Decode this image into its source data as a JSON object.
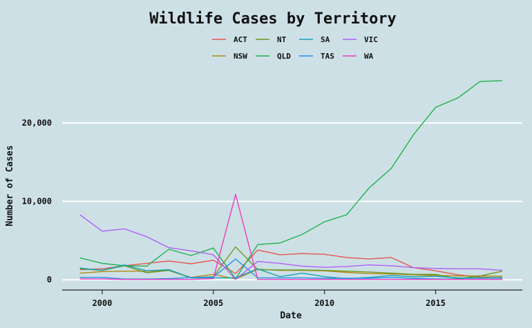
{
  "chart_data": {
    "type": "line",
    "title": "Wildlife Cases by Territory",
    "xlabel": "Date",
    "ylabel": "Number of Cases",
    "xlim": [
      1998.2,
      2018.9
    ],
    "ylim": [
      -1300,
      26000
    ],
    "x_ticks": [
      {
        "value": 2000,
        "label": "2000"
      },
      {
        "value": 2005,
        "label": "2005"
      },
      {
        "value": 2010,
        "label": "2010"
      },
      {
        "value": 2015,
        "label": "2015"
      }
    ],
    "y_ticks": [
      {
        "value": 0,
        "label": "0"
      },
      {
        "value": 10000,
        "label": "10,000"
      },
      {
        "value": 20000,
        "label": "20,000"
      }
    ],
    "grid": "horizontal",
    "legend_position": "top",
    "x": [
      1999,
      2000,
      2001,
      2002,
      2003,
      2004,
      2005,
      2006,
      2007,
      2008,
      2009,
      2010,
      2011,
      2012,
      2013,
      2014,
      2015,
      2016,
      2017,
      2018
    ],
    "series": [
      {
        "name": "ACT",
        "color": "#e8554e",
        "values": [
          1300,
          1400,
          1800,
          2100,
          2400,
          2050,
          2500,
          800,
          3800,
          3200,
          3350,
          3250,
          2850,
          2650,
          2850,
          1550,
          1150,
          650,
          350,
          250
        ]
      },
      {
        "name": "NSW",
        "color": "#b08a0f",
        "values": [
          850,
          1050,
          1100,
          1100,
          1200,
          300,
          700,
          100,
          1350,
          1200,
          1200,
          1150,
          950,
          800,
          750,
          650,
          550,
          500,
          500,
          450
        ]
      },
      {
        "name": "NT",
        "color": "#6a9a1f",
        "values": [
          1400,
          1200,
          1800,
          900,
          1200,
          250,
          400,
          4200,
          1300,
          1250,
          1250,
          1200,
          1100,
          1000,
          850,
          700,
          700,
          150,
          500,
          1100
        ]
      },
      {
        "name": "QLD",
        "color": "#1db24a",
        "values": [
          2800,
          2100,
          1800,
          1750,
          3900,
          3100,
          4050,
          150,
          4500,
          4700,
          5800,
          7400,
          8300,
          11700,
          14200,
          18500,
          22000,
          23200,
          25300,
          25400
        ]
      },
      {
        "name": "SA",
        "color": "#17a3b3",
        "values": [
          1500,
          1200,
          1900,
          1150,
          1300,
          250,
          250,
          250,
          1400,
          400,
          850,
          400,
          150,
          300,
          550,
          400,
          450,
          250,
          250,
          300
        ]
      },
      {
        "name": "TAS",
        "color": "#2a8fe6",
        "values": [
          300,
          300,
          100,
          100,
          150,
          300,
          350,
          2650,
          250,
          250,
          250,
          200,
          200,
          200,
          300,
          200,
          100,
          100,
          100,
          100
        ]
      },
      {
        "name": "VIC",
        "color": "#b05ff5",
        "values": [
          8300,
          6200,
          6500,
          5500,
          4100,
          3700,
          3200,
          50,
          2350,
          2100,
          1750,
          1600,
          1700,
          1900,
          1800,
          1550,
          1450,
          1400,
          1400,
          1200
        ]
      },
      {
        "name": "WA",
        "color": "#e93dbd",
        "values": [
          100,
          100,
          50,
          50,
          50,
          50,
          150,
          10900,
          50,
          50,
          50,
          50,
          50,
          50,
          50,
          50,
          50,
          50,
          50,
          50
        ]
      }
    ]
  }
}
